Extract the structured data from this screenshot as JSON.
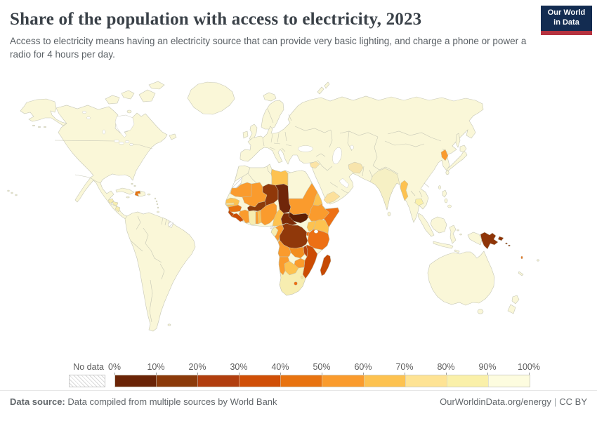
{
  "header": {
    "title": "Share of the population with access to electricity, 2023",
    "subtitle": "Access to electricity means having an electricity source that can provide very basic lighting, and charge a phone or power a radio for 4 hours per day.",
    "logo_line1": "Our World",
    "logo_line2": "in Data",
    "logo_bg": "#132c51",
    "logo_accent": "#b5323f"
  },
  "legend": {
    "no_data_label": "No data",
    "tick_labels": [
      "0%",
      "10%",
      "20%",
      "30%",
      "40%",
      "50%",
      "60%",
      "70%",
      "80%",
      "90%",
      "100%"
    ],
    "bin_colors": [
      "#6A2406",
      "#8B3A0A",
      "#B13E0E",
      "#D04F07",
      "#E87310",
      "#FA9B2D",
      "#FDC250",
      "#FEE394",
      "#FAF0A9",
      "#FDFCDF"
    ]
  },
  "footer": {
    "source_label": "Data source:",
    "source_text": "Data compiled from multiple sources by World Bank",
    "site_text": "OurWorldinData.org/energy",
    "separator": "|",
    "license_text": "CC BY"
  },
  "map": {
    "ocean_color": "#ffffff",
    "land_color": "#faf7d8",
    "border_color": "#c6c7b6",
    "no_data_countries": [
      "western-sahara",
      "french-guiana",
      "equatorial-guinea"
    ],
    "country_fills": {
      "haiti": "#E87310",
      "guatemala": "#F7EDB0",
      "honduras": "#F7EDB0",
      "nicaragua": "#F7EDB0",
      "mauritania": "#FA9B2D",
      "mali": "#FA9B2D",
      "senegal": "#FDC250",
      "gambia": "#FEE394",
      "guinea": "#E87310",
      "sierra-leone": "#C24A05",
      "liberia": "#CC4C02",
      "ivory-coast": "#FA9B2D",
      "ghana": "#F7EDB0",
      "togo": "#FA9B2D",
      "benin": "#FDC250",
      "burkina-faso": "#8B3A0A",
      "niger": "#90380A",
      "nigeria": "#FA9B2D",
      "chad": "#70260A",
      "sudan": "#FA9B2D",
      "south-sudan": "#5E1E03",
      "eritrea": "#FDC250",
      "ethiopia": "#FA9B2D",
      "somalia": "#ED7014",
      "cameroon": "#FDC250",
      "central-african-republic": "#7C2B06",
      "gabon": "#F7EDB0",
      "congo": "#FA9B2D",
      "drc": "#90380A",
      "uganda": "#FDC250",
      "kenya": "#FDC250",
      "rwanda-burundi": "#ED7014",
      "tanzania": "#ED7014",
      "angola": "#FA9B2D",
      "zambia": "#F28E20",
      "malawi": "#B8450E",
      "mozambique": "#CC4C02",
      "zimbabwe": "#FA9B2D",
      "botswana": "#FDC250",
      "namibia": "#FA9B2D",
      "south-africa": "#F7EDB0",
      "lesotho": "#ED7014",
      "eswatini": "#FEE394",
      "madagascar": "#C64A04",
      "libya": "#FDC250",
      "syria": "#FCE4A6",
      "afghanistan": "#F7E4AC",
      "yemen": "#FCE09B",
      "myanmar": "#FDC250",
      "cambodia": "#FAF0A9",
      "north-korea": "#FA9B2D",
      "india": "#F6F0C4",
      "papua-new-guinea": "#8F3508",
      "solomon-islands": "#8F3508",
      "vanuatu": "#ED7014"
    }
  },
  "chart_data": {
    "type": "heatmap",
    "subtype": "world-choropleth",
    "title": "Share of the population with access to electricity, 2023",
    "unit": "% of population with access to electricity",
    "legend_position": "bottom",
    "bins": [
      {
        "range": "0-10%",
        "color": "#6A2406"
      },
      {
        "range": "10-20%",
        "color": "#8B3A0A"
      },
      {
        "range": "20-30%",
        "color": "#B13E0E"
      },
      {
        "range": "30-40%",
        "color": "#D04F07"
      },
      {
        "range": "40-50%",
        "color": "#E87310"
      },
      {
        "range": "50-60%",
        "color": "#FA9B2D"
      },
      {
        "range": "60-70%",
        "color": "#FDC250"
      },
      {
        "range": "70-80%",
        "color": "#FEE394"
      },
      {
        "range": "80-90%",
        "color": "#FAF0A9"
      },
      {
        "range": "90-100%",
        "color": "#FDFCDF"
      }
    ],
    "regions_by_bin": {
      "0-10%": [
        "South Sudan"
      ],
      "10-20%": [
        "Chad",
        "Central African Republic",
        "Niger",
        "DR Congo",
        "Burkina Faso",
        "Papua New Guinea",
        "Solomon Islands"
      ],
      "20-30%": [
        "Sierra Leone",
        "Malawi"
      ],
      "30-40%": [
        "Liberia",
        "Mozambique",
        "Madagascar"
      ],
      "40-50%": [
        "Guinea",
        "Somalia",
        "Tanzania",
        "Haiti",
        "Zambia",
        "Lesotho",
        "Burundi"
      ],
      "50-60%": [
        "Mauritania",
        "Mali",
        "Ivory Coast",
        "Togo",
        "Nigeria",
        "Sudan",
        "Ethiopia",
        "Angola",
        "Zimbabwe",
        "Namibia",
        "Congo",
        "North Korea"
      ],
      "60-70%": [
        "Senegal",
        "Benin",
        "Cameroon",
        "Uganda",
        "Kenya",
        "Botswana",
        "Eritrea",
        "Libya",
        "Myanmar",
        "Vanuatu"
      ],
      "70-80%": [
        "Gambia",
        "Yemen",
        "Afghanistan",
        "Syria"
      ],
      "80-90%": [
        "Ghana",
        "Gabon",
        "South Africa",
        "Guatemala",
        "Honduras",
        "Nicaragua",
        "Cambodia"
      ],
      "90-100%": [
        "Most other countries (Americas, Europe, Russia, China, India, Middle East, North Africa, East Asia, Oceania)"
      ]
    },
    "no_data_regions": [
      "Western Sahara",
      "French Guiana",
      "Equatorial Guinea"
    ]
  }
}
